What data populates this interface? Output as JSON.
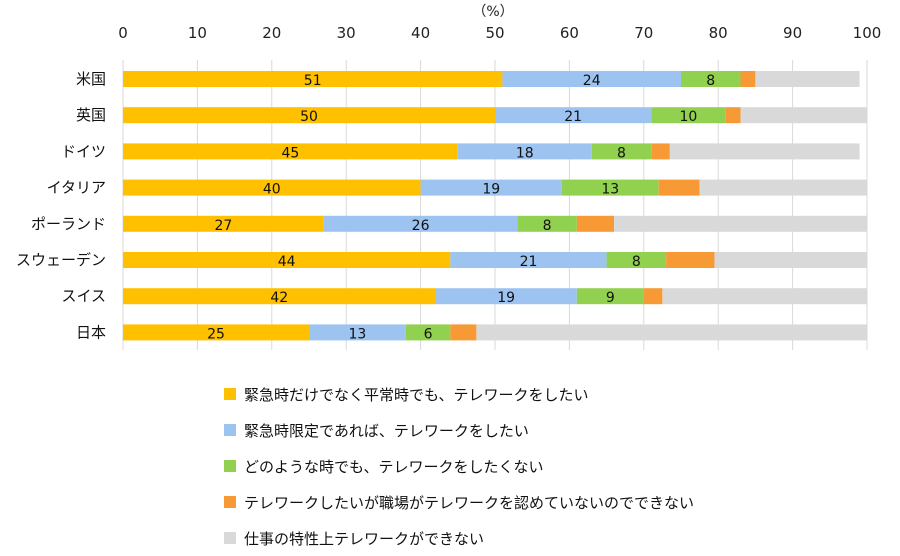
{
  "chart_data": {
    "type": "bar",
    "orientation": "horizontal",
    "stacked": true,
    "unit_label": "（%）",
    "xlim": [
      0,
      100
    ],
    "x_ticks": [
      "0",
      "10",
      "20",
      "30",
      "40",
      "50",
      "60",
      "70",
      "80",
      "90",
      "100"
    ],
    "categories": [
      "米国",
      "英国",
      "ドイツ",
      "イタリア",
      "ポーランド",
      "スウェーデン",
      "スイス",
      "日本"
    ],
    "series": [
      {
        "name": "緊急時だけでなく平常時でも、テレワークをしたい",
        "color": "#FFC000",
        "values": [
          51,
          50,
          45,
          40,
          27,
          44,
          42,
          25
        ],
        "labels": [
          "51",
          "50",
          "45",
          "40",
          "27",
          "44",
          "42",
          "25"
        ]
      },
      {
        "name": "緊急時限定であれば、テレワークをしたい",
        "color": "#9DC3F0",
        "values": [
          24,
          21,
          18,
          19,
          26,
          21,
          19,
          13
        ],
        "labels": [
          "24",
          "21",
          "18",
          "19",
          "26",
          "21",
          "19",
          "13"
        ]
      },
      {
        "name": "どのような時でも、テレワークをしたくない",
        "color": "#92D050",
        "values": [
          8,
          10,
          8,
          13,
          8,
          8,
          9,
          6
        ],
        "labels": [
          "8",
          "10",
          "8",
          "13",
          "8",
          "8",
          "9",
          "6"
        ]
      },
      {
        "name": "テレワークしたいが職場がテレワークを認めていないのでできない",
        "color": "#F79A35",
        "values": [
          2,
          2,
          2.5,
          5.5,
          5,
          6.5,
          2.5,
          3.5
        ],
        "labels": [
          "",
          "",
          "",
          "",
          "",
          "",
          "",
          ""
        ]
      },
      {
        "name": "仕事の特性上テレワークができない",
        "color": "#D9D9D9",
        "values": [
          14,
          17,
          25.5,
          22.5,
          34,
          20.5,
          27.5,
          52.5
        ],
        "labels": [
          "",
          "",
          "",
          "",
          "",
          "",
          "",
          ""
        ]
      }
    ],
    "grid": true,
    "legend_position": "bottom"
  }
}
